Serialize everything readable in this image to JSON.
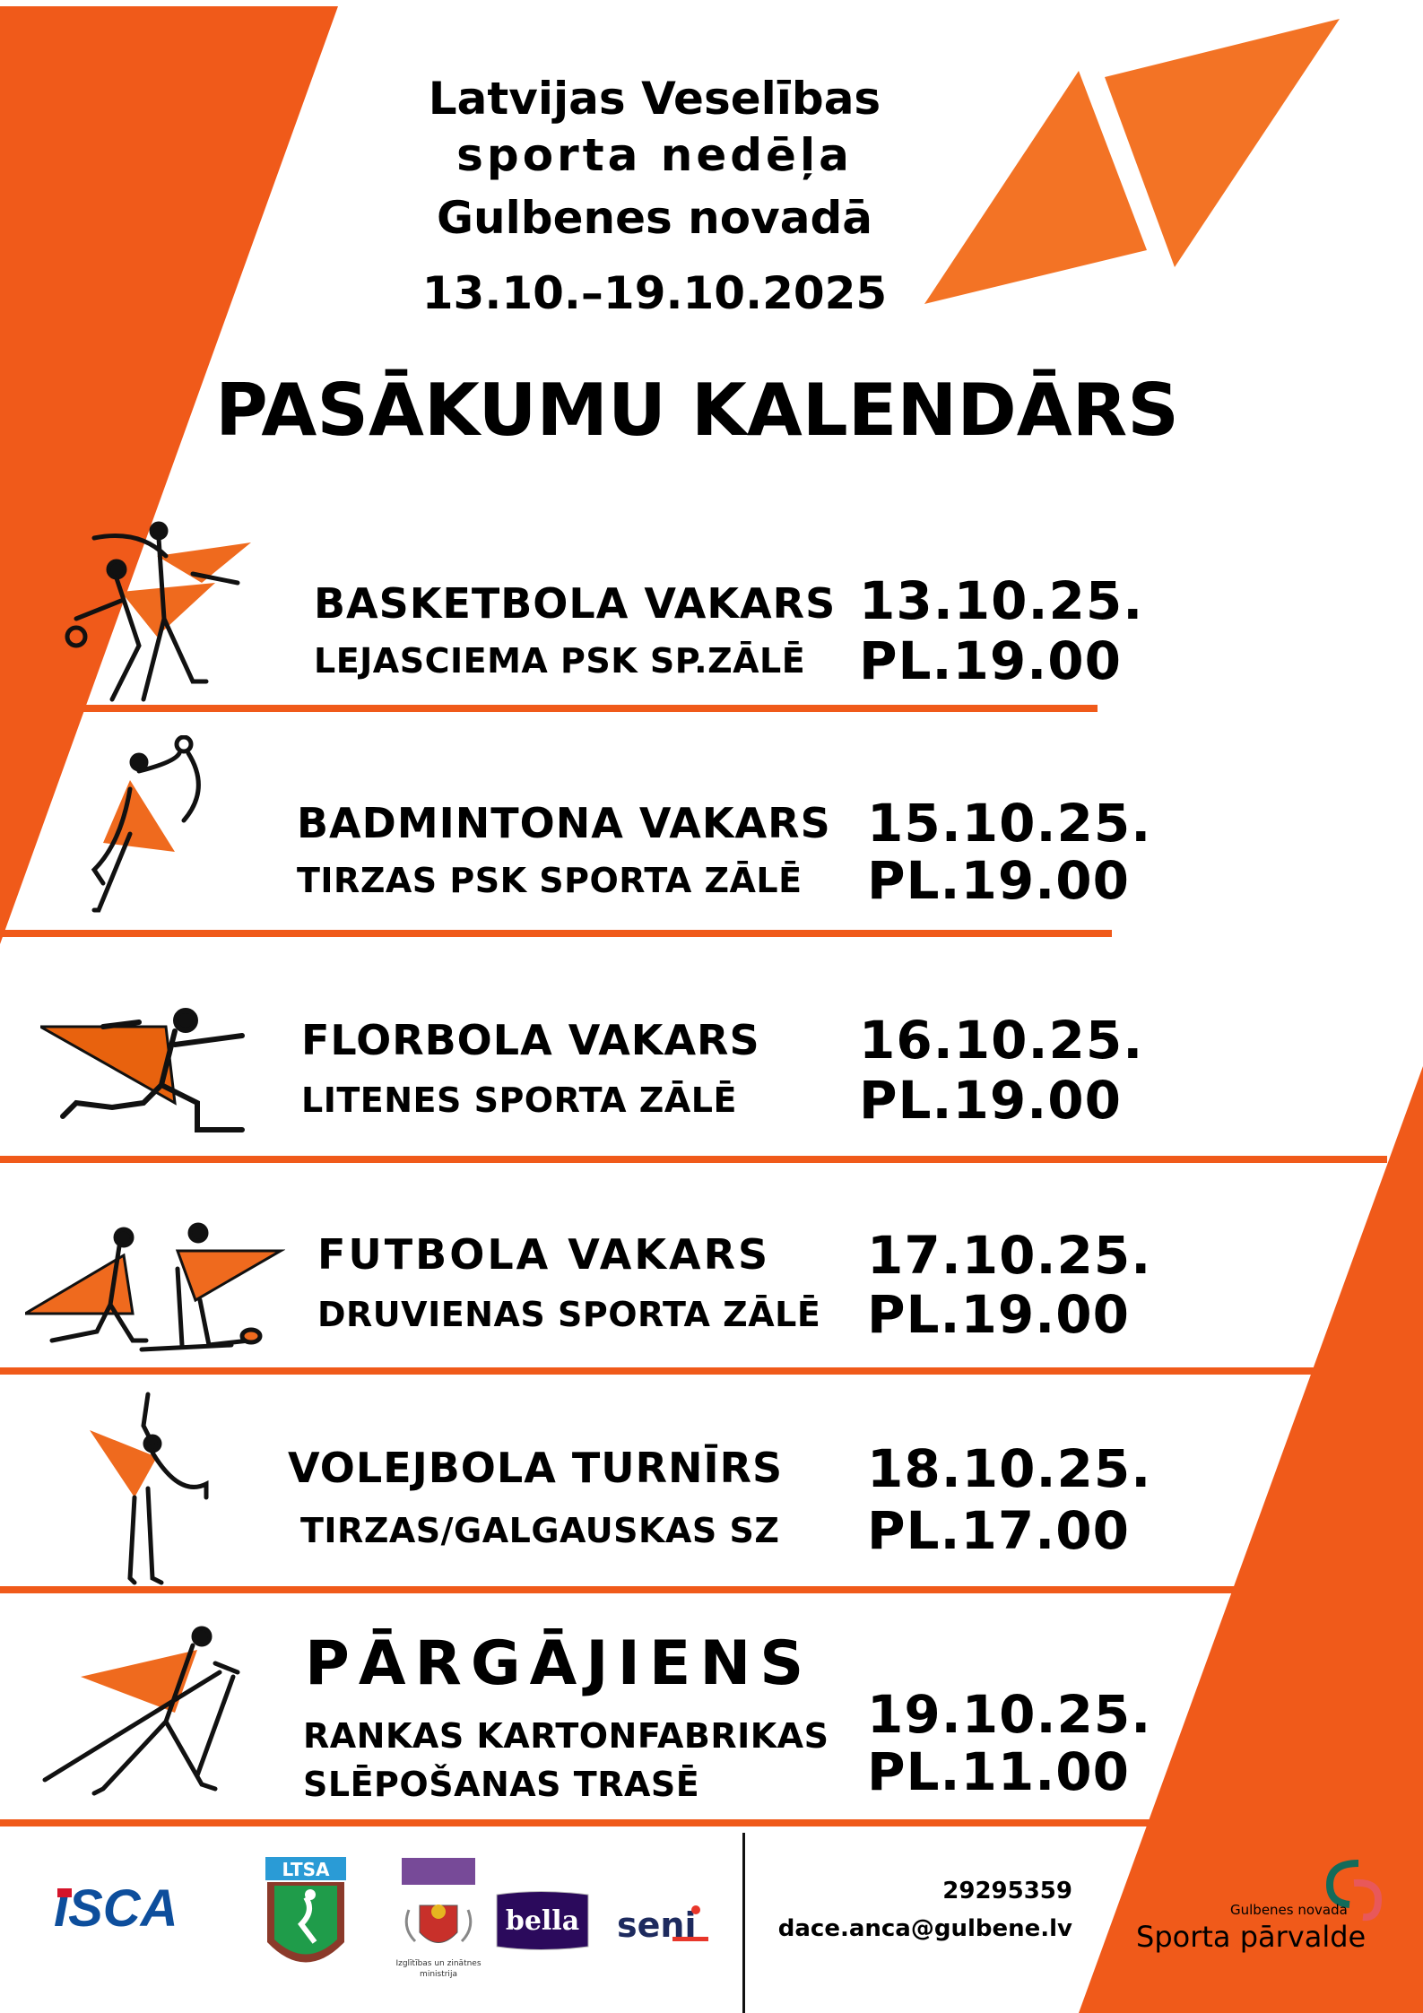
{
  "header": {
    "title_lines": [
      "Latvijas Veselības",
      "sporta nedēļa",
      "Gulbenes novadā"
    ],
    "dates": "13.10.–19.10.2025",
    "calendar_title": "PASĀKUMU KALENDĀRS"
  },
  "events": [
    {
      "name": "BASKETBOLA VAKARS",
      "venue": "LEJASCIEMA PSK SP.ZĀLĒ",
      "date": "13.10.25.",
      "time": "PL.19.00",
      "icon": "basketball-players-icon"
    },
    {
      "name": "BADMINTONA VAKARS",
      "venue": "TIRZAS PSK SPORTA ZĀLĒ",
      "date": "15.10.25.",
      "time": "PL.19.00",
      "icon": "badminton-player-icon"
    },
    {
      "name": "FLORBOLA VAKARS",
      "venue": "LITENES SPORTA ZĀLĒ",
      "date": "16.10.25.",
      "time": "PL.19.00",
      "icon": "floorball-player-icon"
    },
    {
      "name": "FUTBOLA VAKARS",
      "venue": "DRUVIENAS SPORTA ZĀLĒ",
      "date": "17.10.25.",
      "time": "PL.19.00",
      "icon": "football-players-icon"
    },
    {
      "name": "VOLEJBOLA TURNĪRS",
      "venue": "TIRZAS/GALGAUSKAS SZ",
      "date": "18.10.25.",
      "time": "PL.17.00",
      "icon": "volleyball-player-icon"
    },
    {
      "name": "PĀRGĀJIENS",
      "venue_lines": [
        "RANKAS KARTONFABRIKAS",
        "SLĒPOŠANAS TRASĒ"
      ],
      "date": "19.10.25.",
      "time": "PL.11.00",
      "icon": "nordic-walker-icon"
    }
  ],
  "footer": {
    "logos": [
      "ISCA",
      "LTSA",
      "Izglītības un zinātnes ministrija",
      "bella",
      "seni"
    ],
    "phone": "29295359",
    "email": "dace.anca@gulbene.lv",
    "organizer_small": "Gulbenes novada",
    "organizer": "Sporta pārvalde"
  },
  "colors": {
    "accent": "#f05a1a",
    "accent_light": "#f37325"
  }
}
